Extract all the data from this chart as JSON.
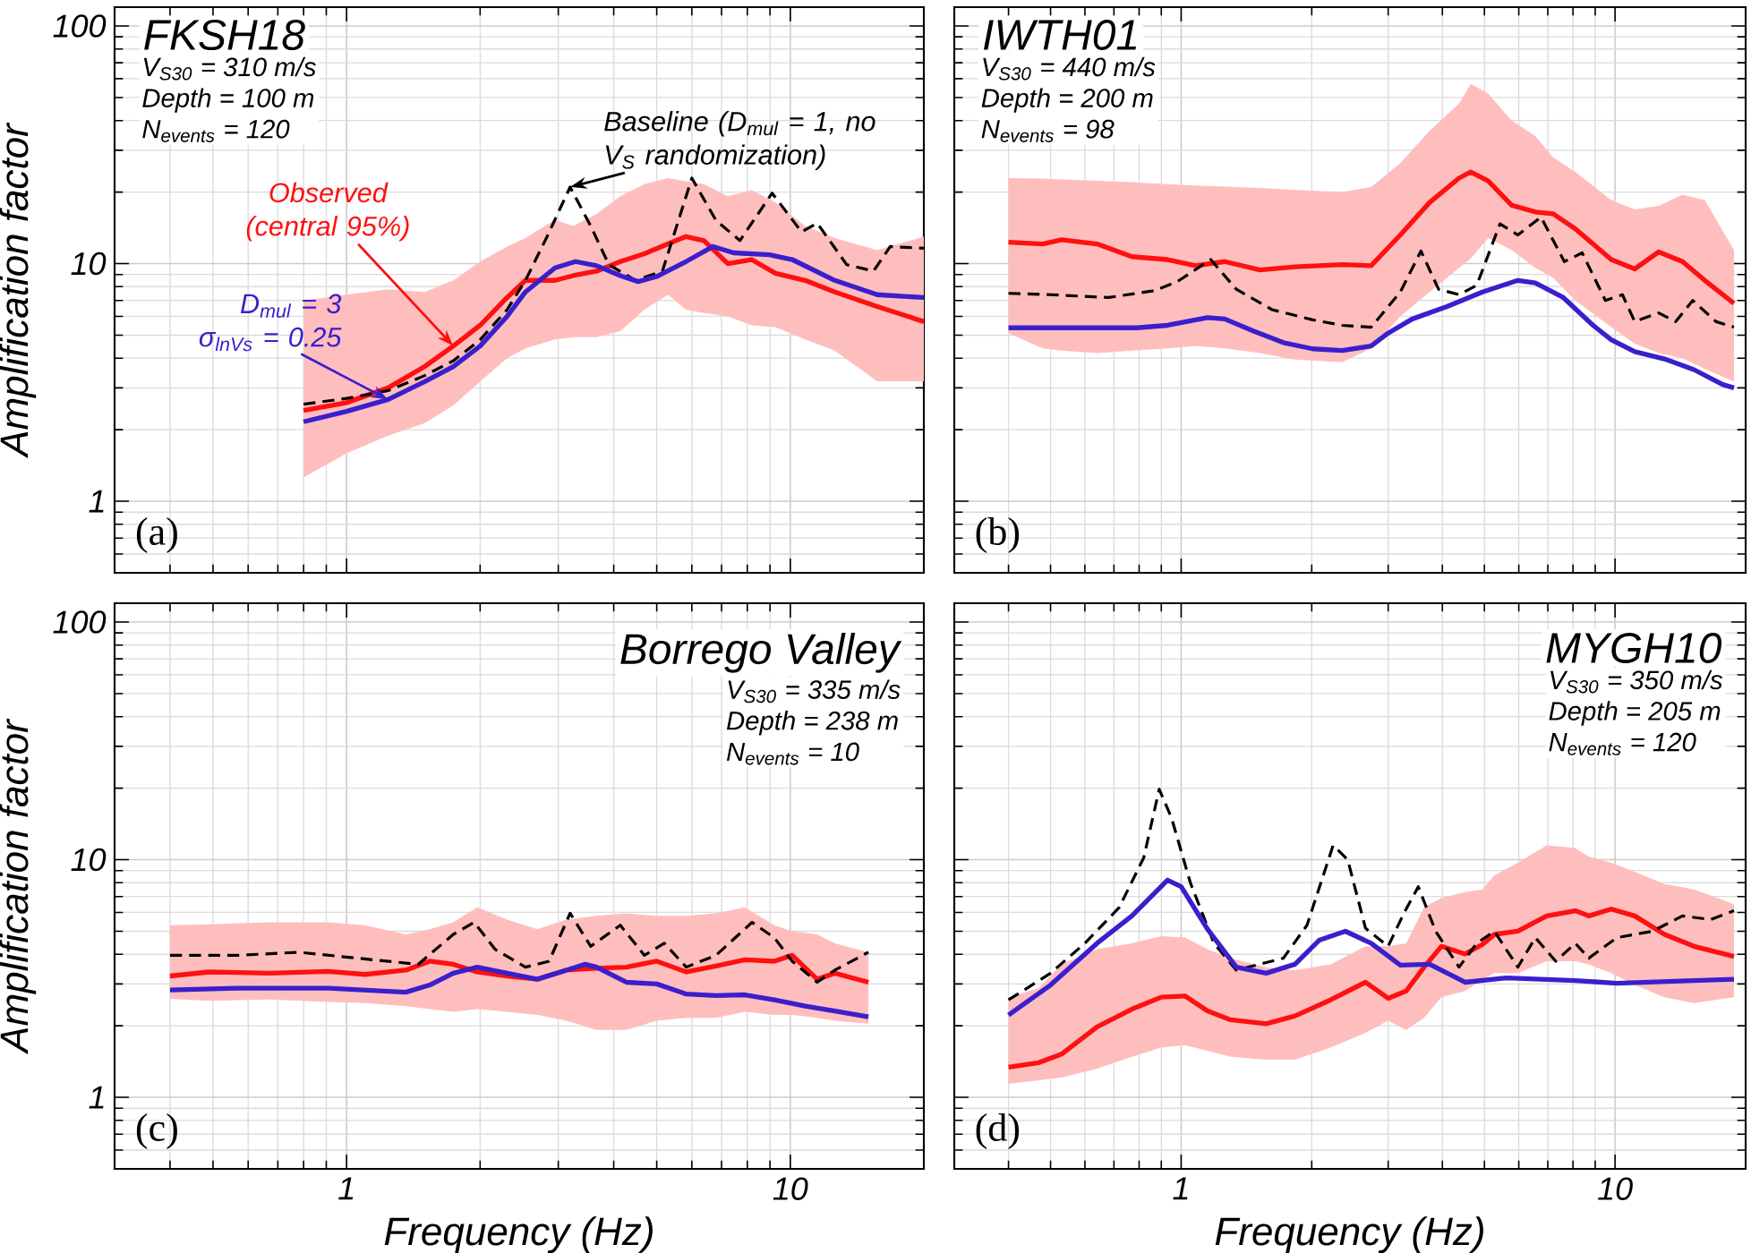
{
  "chart_data": [
    {
      "type": "line",
      "title": "FKSH18",
      "ylabel": "Amplification factor",
      "log": "xy",
      "grid": true,
      "tick_labels": "y",
      "xlim": [
        0.3,
        20
      ],
      "ylim": [
        0.5,
        120
      ],
      "xticks": [
        1,
        10
      ],
      "yticks": [
        1,
        10,
        100
      ],
      "annotations": [
        "V$_{S30}$ = 310 m/s",
        "Depth = 100 m",
        "N$_{events}$ = 120",
        "(a)"
      ],
      "series": [
        {
          "name": "Observed (central 95%)",
          "color": "#ff1010",
          "line_style": "solid",
          "x": [
            0.8,
            1,
            1.24,
            1.5,
            1.74,
            2,
            2.3,
            2.53,
            2.95,
            3.24,
            3.66,
            4.14,
            4.69,
            5.3,
            5.82,
            6.39,
            7.23,
            8.18,
            9.26,
            10.8,
            12.6,
            15.7,
            20
          ],
          "values": [
            2.41,
            2.6,
            3.0,
            3.69,
            4.5,
            5.5,
            7.2,
            8.5,
            8.5,
            8.9,
            9.3,
            10.2,
            11.0,
            12.1,
            13.0,
            12.5,
            10.0,
            10.4,
            9.1,
            8.5,
            7.6,
            6.6,
            5.7
          ],
          "upper": [
            7.0,
            7.4,
            7.8,
            7.6,
            8.5,
            10.2,
            11.8,
            12.8,
            15.3,
            14.4,
            16.2,
            19.2,
            21.6,
            22.9,
            22.2,
            21.6,
            19.2,
            20.4,
            18.1,
            14.4,
            12.8,
            11.4,
            13
          ],
          "lower": [
            1.26,
            1.59,
            1.89,
            2.13,
            2.53,
            3.19,
            4.0,
            4.4,
            4.8,
            4.9,
            4.9,
            5.2,
            6.4,
            7.4,
            6.4,
            6.2,
            6.0,
            5.5,
            5.4,
            4.8,
            4.3,
            3.2,
            3.2
          ]
        },
        {
          "name": "Baseline (D$_{mul}$ = 1, no V$_{S}$ randomization)",
          "color": "#000000",
          "line_style": "dashed",
          "x": [
            0.8,
            1,
            1.24,
            1.5,
            1.74,
            2,
            2.3,
            2.53,
            2.82,
            3.19,
            3.55,
            3.9,
            4.48,
            5.15,
            6.0,
            6.8,
            7.7,
            9.1,
            10.6,
            11.5,
            13.4,
            15.4,
            16.8,
            20
          ],
          "values": [
            2.56,
            2.71,
            2.92,
            3.38,
            3.9,
            4.78,
            6.4,
            8.5,
            12.8,
            21,
            14.4,
            9.9,
            8.5,
            9.3,
            22.9,
            15.2,
            12.5,
            19.8,
            13.6,
            14.8,
            9.9,
            9.3,
            11.8,
            11.6
          ]
        },
        {
          "name": "D$_{mul}$ = 3 σ$_{lnVs}$ = 0.25",
          "color": "#3a1fcc",
          "line_style": "solid",
          "x": [
            0.8,
            1,
            1.24,
            1.5,
            1.74,
            2,
            2.3,
            2.53,
            2.95,
            3.28,
            3.66,
            4.14,
            4.54,
            4.98,
            5.82,
            6.7,
            7.45,
            8.97,
            10.1,
            12.6,
            15.7,
            20
          ],
          "values": [
            2.16,
            2.39,
            2.68,
            3.19,
            3.69,
            4.5,
            6.0,
            7.6,
            9.6,
            10.2,
            9.8,
            8.9,
            8.4,
            8.8,
            10.2,
            11.8,
            11.1,
            10.9,
            10.4,
            8.5,
            7.4,
            7.2
          ]
        }
      ]
    },
    {
      "type": "line",
      "title": "IWTH01",
      "log": "xy",
      "grid": true,
      "tick_labels": false,
      "xlim": [
        0.3,
        20
      ],
      "ylim": [
        0.5,
        120
      ],
      "xticks": [
        1,
        10
      ],
      "yticks": [
        1,
        10,
        100
      ],
      "annotations": [
        "V$_{S30}$ = 440 m/s",
        "Depth = 200 m",
        "N$_{events}$ = 98",
        "(b)"
      ],
      "series": [
        {
          "color": "#ff1010",
          "line_style": "solid",
          "x": [
            0.4,
            0.48,
            0.53,
            0.64,
            0.77,
            0.93,
            1.08,
            1.26,
            1.52,
            1.83,
            2.35,
            2.74,
            3.2,
            3.74,
            4.37,
            4.65,
            5.1,
            5.78,
            6.55,
            7.2,
            8.1,
            9.8,
            11.1,
            12.6,
            14.3,
            16.1,
            18.8
          ],
          "values": [
            12.3,
            12.1,
            12.6,
            12.1,
            10.7,
            10.4,
            9.8,
            10.2,
            9.4,
            9.7,
            9.9,
            9.8,
            13.2,
            18.1,
            22.9,
            24.3,
            22.3,
            17.6,
            16.5,
            16.2,
            14.0,
            10.4,
            9.5,
            11.2,
            10.2,
            8.5,
            6.8
          ],
          "upper": [
            22.9,
            22.8,
            22.6,
            22.3,
            22,
            21.6,
            21.3,
            21.1,
            20.8,
            20.4,
            20.0,
            21.0,
            26.5,
            36.3,
            47.1,
            57,
            52,
            40,
            34.4,
            28,
            24.3,
            18.5,
            16.9,
            17.5,
            19.5,
            18.5,
            11.4
          ],
          "lower": [
            5.1,
            4.4,
            4.3,
            4.2,
            4.3,
            4.4,
            4.5,
            4.4,
            4.2,
            3.95,
            3.85,
            4.4,
            6.0,
            7.6,
            9.6,
            10.5,
            12.8,
            11.4,
            9.6,
            8.7,
            7.0,
            5.4,
            4.6,
            4.2,
            4.0,
            3.6,
            3.19
          ]
        },
        {
          "color": "#000000",
          "line_style": "dashed",
          "x": [
            0.4,
            0.5,
            0.68,
            0.87,
            0.98,
            1.17,
            1.34,
            1.62,
            2.01,
            2.35,
            2.74,
            3.2,
            3.57,
            3.92,
            4.37,
            4.8,
            5.43,
            5.97,
            6.75,
            7.64,
            8.4,
            9.5,
            10.4,
            11.1,
            12.6,
            13.8,
            15.1,
            17.1,
            18.8
          ],
          "values": [
            7.5,
            7.4,
            7.2,
            7.7,
            8.4,
            10.4,
            7.8,
            6.4,
            5.8,
            5.5,
            5.4,
            7.6,
            11.3,
            7.8,
            7.4,
            8.1,
            14.7,
            13.2,
            15.7,
            10.2,
            11.1,
            7.0,
            7.4,
            5.7,
            6.2,
            5.7,
            7.0,
            5.7,
            5.4
          ]
        },
        {
          "color": "#3a1fcc",
          "line_style": "solid",
          "x": [
            0.4,
            0.5,
            0.79,
            0.93,
            1.15,
            1.26,
            1.47,
            1.72,
            2.01,
            2.35,
            2.74,
            3.0,
            3.41,
            4.1,
            4.95,
            5.97,
            6.55,
            7.6,
            8.9,
            9.8,
            11.1,
            13,
            15.2,
            17.7,
            18.8
          ],
          "values": [
            5.37,
            5.37,
            5.37,
            5.5,
            5.93,
            5.85,
            5.2,
            4.65,
            4.38,
            4.31,
            4.5,
            5.1,
            5.85,
            6.6,
            7.6,
            8.5,
            8.3,
            7.2,
            5.5,
            4.78,
            4.26,
            3.97,
            3.58,
            3.1,
            3.0
          ]
        }
      ]
    },
    {
      "type": "line",
      "title": "Borrego Valley",
      "xlabel": "Frequency (Hz)",
      "ylabel": "Amplification factor",
      "log": "xy",
      "grid": true,
      "xlim": [
        0.3,
        20
      ],
      "ylim": [
        0.5,
        120
      ],
      "xticks": [
        1,
        10
      ],
      "yticks": [
        1,
        10,
        100
      ],
      "annotations": [
        "V$_{S30}$ = 335 m/s",
        "Depth = 238 m",
        "N$_{events}$ = 10",
        "(c)"
      ],
      "series": [
        {
          "color": "#ff1010",
          "line_style": "solid",
          "x": [
            0.4,
            0.49,
            0.67,
            0.91,
            1.1,
            1.36,
            1.54,
            1.74,
            1.97,
            2.3,
            2.69,
            3.13,
            3.66,
            4.27,
            5.0,
            5.83,
            6.8,
            7.9,
            9.2,
            10.1,
            11.5,
            12.6,
            15
          ],
          "values": [
            3.24,
            3.37,
            3.33,
            3.39,
            3.29,
            3.43,
            3.74,
            3.63,
            3.37,
            3.24,
            3.14,
            3.43,
            3.49,
            3.53,
            3.74,
            3.37,
            3.57,
            3.79,
            3.74,
            3.96,
            3.14,
            3.33,
            3.05
          ],
          "upper": [
            5.3,
            5.35,
            5.45,
            5.45,
            5.3,
            4.85,
            5.1,
            5.45,
            6.3,
            5.6,
            5.1,
            5.6,
            5.8,
            5.95,
            5.8,
            5.8,
            5.95,
            6.3,
            5.3,
            5.0,
            4.85,
            4.45,
            4.08
          ],
          "lower": [
            2.6,
            2.55,
            2.58,
            2.52,
            2.49,
            2.42,
            2.35,
            2.29,
            2.35,
            2.29,
            2.22,
            2.1,
            1.92,
            1.92,
            2.1,
            2.16,
            2.16,
            2.29,
            2.22,
            2.22,
            2.16,
            2.1,
            2.04
          ]
        },
        {
          "color": "#000000",
          "line_style": "dashed",
          "x": [
            0.4,
            0.57,
            0.78,
            1.06,
            1.45,
            1.74,
            1.94,
            2.16,
            2.53,
            2.86,
            3.19,
            3.55,
            4.14,
            4.69,
            5.2,
            5.83,
            6.8,
            8.2,
            9.2,
            10.1,
            11.5,
            12.6,
            15
          ],
          "values": [
            3.96,
            3.96,
            4.08,
            3.85,
            3.63,
            4.85,
            5.45,
            4.2,
            3.53,
            3.74,
            5.95,
            4.32,
            5.3,
            3.96,
            4.45,
            3.53,
            3.96,
            5.45,
            4.7,
            3.74,
            3.05,
            3.43,
            4.08
          ]
        },
        {
          "color": "#3a1fcc",
          "line_style": "solid",
          "x": [
            0.4,
            0.57,
            0.91,
            1.36,
            1.54,
            1.74,
            1.97,
            2.3,
            2.69,
            3.13,
            3.45,
            3.66,
            4.27,
            5.0,
            5.83,
            6.8,
            7.9,
            9.2,
            10.8,
            12.6,
            15
          ],
          "values": [
            2.83,
            2.88,
            2.88,
            2.77,
            2.97,
            3.33,
            3.53,
            3.33,
            3.14,
            3.43,
            3.63,
            3.53,
            3.05,
            3.0,
            2.72,
            2.68,
            2.7,
            2.57,
            2.42,
            2.31,
            2.18
          ]
        }
      ]
    },
    {
      "type": "line",
      "title": "MYGH10",
      "xlabel": "Frequency (Hz)",
      "log": "xy",
      "grid": true,
      "tick_labels": "x",
      "xlim": [
        0.3,
        20
      ],
      "ylim": [
        0.5,
        120
      ],
      "xticks": [
        1,
        10
      ],
      "yticks": [
        1,
        10,
        100
      ],
      "annotations": [
        "V$_{S30}$ = 350 m/s",
        "Depth = 205 m",
        "N$_{events}$ = 120",
        "(d)"
      ],
      "series": [
        {
          "color": "#ff1010",
          "line_style": "solid",
          "x": [
            0.4,
            0.47,
            0.53,
            0.64,
            0.77,
            0.9,
            1.02,
            1.15,
            1.3,
            1.57,
            1.83,
            2.21,
            2.66,
            3.0,
            3.3,
            3.63,
            3.98,
            4.51,
            4.95,
            5.27,
            5.97,
            6.96,
            8.1,
            8.7,
            9.8,
            11.1,
            13,
            15.2,
            18.8
          ],
          "values": [
            1.34,
            1.4,
            1.52,
            1.98,
            2.35,
            2.64,
            2.67,
            2.31,
            2.12,
            2.04,
            2.2,
            2.57,
            3.05,
            2.61,
            2.8,
            3.53,
            4.32,
            4.01,
            4.4,
            4.85,
            5.0,
            5.8,
            6.1,
            5.8,
            6.2,
            5.8,
            4.85,
            4.32,
            3.92
          ],
          "upper": [
            2.64,
            2.88,
            3.63,
            4.2,
            4.45,
            4.77,
            4.7,
            4.2,
            3.85,
            3.53,
            3.43,
            3.63,
            4.32,
            4.32,
            4.45,
            6.3,
            6.9,
            7.3,
            7.5,
            8.6,
            9.7,
            11.5,
            11.2,
            10.3,
            9.7,
            8.9,
            7.9,
            7.5,
            6.5
          ],
          "lower": [
            1.14,
            1.18,
            1.21,
            1.32,
            1.48,
            1.62,
            1.66,
            1.57,
            1.48,
            1.44,
            1.44,
            1.62,
            1.87,
            2.1,
            1.92,
            2.16,
            2.64,
            2.8,
            3.14,
            3.33,
            3.33,
            3.74,
            3.74,
            3.63,
            3.33,
            2.97,
            2.64,
            2.49,
            2.64
          ]
        },
        {
          "color": "#000000",
          "line_style": "dashed",
          "x": [
            0.4,
            0.5,
            0.6,
            0.72,
            0.82,
            0.89,
            0.95,
            1.05,
            1.19,
            1.34,
            1.72,
            1.95,
            2.24,
            2.42,
            2.66,
            3.0,
            3.26,
            3.52,
            3.86,
            4.37,
            4.8,
            5.27,
            5.97,
            6.55,
            7.3,
            8.1,
            8.7,
            10.1,
            12.2,
            14.3,
            16.6,
            18.8
          ],
          "values": [
            2.57,
            3.33,
            4.45,
            6.3,
            10.2,
            19.8,
            15.0,
            8.0,
            4.45,
            3.43,
            3.85,
            5.3,
            11.5,
            10.0,
            5.15,
            4.32,
            5.95,
            7.7,
            5.0,
            3.53,
            4.45,
            5.0,
            3.53,
            4.7,
            3.74,
            4.45,
            3.85,
            4.7,
            5.0,
            5.8,
            5.6,
            6.1
          ]
        },
        {
          "color": "#3a1fcc",
          "line_style": "solid",
          "x": [
            0.4,
            0.5,
            0.64,
            0.77,
            0.93,
            1.0,
            1.15,
            1.34,
            1.57,
            1.83,
            2.08,
            2.39,
            2.74,
            3.2,
            3.74,
            4.51,
            5.61,
            8.1,
            10.1,
            15.2,
            18.8
          ],
          "values": [
            2.22,
            2.97,
            4.45,
            5.8,
            8.2,
            7.7,
            5.1,
            3.53,
            3.33,
            3.63,
            4.58,
            5.0,
            4.45,
            3.6,
            3.63,
            3.05,
            3.18,
            3.1,
            3.02,
            3.1,
            3.14
          ]
        }
      ]
    }
  ]
}
